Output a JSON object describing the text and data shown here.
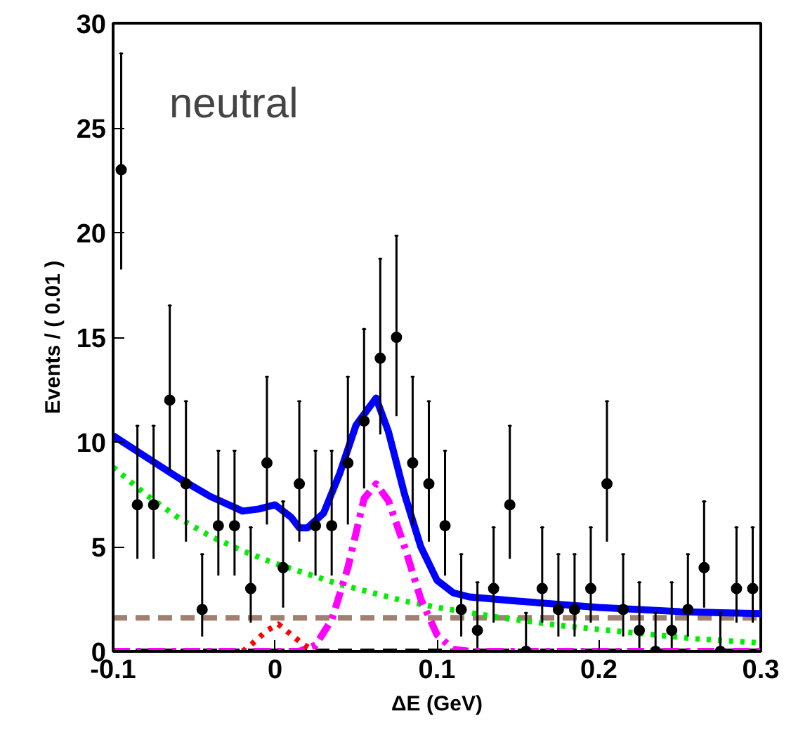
{
  "chart_data": {
    "type": "line",
    "xlabel": "ΔE (GeV)",
    "ylabel": "Events / ( 0.01 )",
    "annotations": [
      "neutral"
    ],
    "xlim": [
      -0.1,
      0.3
    ],
    "xticks": [
      -0.1,
      0,
      0.1,
      0.2,
      0.3
    ],
    "ylim": [
      0,
      30
    ],
    "yticks": [
      0,
      5,
      10,
      15,
      20,
      25,
      30
    ],
    "series": [
      {
        "color": "#a08070",
        "line_style": "dashed",
        "x": [
          -0.1,
          0.3
        ],
        "values": [
          1.6,
          1.6
        ]
      },
      {
        "color": "#000000",
        "line_style": "dashed",
        "x": [
          -0.1,
          0.3
        ],
        "values": [
          0,
          0
        ]
      },
      {
        "color": "#00ee00",
        "line_style": "dotted",
        "x": [
          -0.1,
          -0.08,
          -0.06,
          -0.04,
          -0.02,
          0,
          0.02,
          0.04,
          0.06,
          0.08,
          0.1,
          0.14,
          0.18,
          0.22,
          0.26,
          0.3
        ],
        "values": [
          8.8,
          7.5,
          6.4,
          5.5,
          4.8,
          4.2,
          3.7,
          3.2,
          2.8,
          2.4,
          2.1,
          1.6,
          1.2,
          0.9,
          0.6,
          0.4
        ]
      },
      {
        "color": "#ff00ff",
        "line_style": "dashdot",
        "x": [
          -0.1,
          0.015,
          0.025,
          0.035,
          0.045,
          0.055,
          0.0624,
          0.07,
          0.08,
          0.09,
          0.1,
          0.11,
          0.12,
          0.3
        ],
        "values": [
          0,
          0,
          0.3,
          1.5,
          4,
          7.3,
          8,
          7.2,
          5,
          2.5,
          0.8,
          0.1,
          0,
          0
        ]
      },
      {
        "color": "#ff0000",
        "line_style": "dotted",
        "x": [
          -0.02,
          -0.015,
          -0.005,
          0.002,
          0.01,
          0.018,
          0.025
        ],
        "values": [
          0,
          0.3,
          1.0,
          1.3,
          0.8,
          0.3,
          0
        ]
      },
      {
        "color": "#0000ff",
        "line_style": "solid",
        "x": [
          -0.1,
          -0.08,
          -0.06,
          -0.04,
          -0.02,
          -0.01,
          0,
          0.01,
          0.015,
          0.02,
          0.03,
          0.04,
          0.05,
          0.0624,
          0.07,
          0.08,
          0.09,
          0.1,
          0.11,
          0.12,
          0.15,
          0.2,
          0.25,
          0.3
        ],
        "values": [
          10.3,
          9.3,
          8.3,
          7.4,
          6.7,
          6.8,
          7.0,
          6.4,
          5.9,
          5.9,
          6.6,
          8.5,
          10.8,
          12.1,
          10.5,
          7.5,
          5,
          3.4,
          2.8,
          2.6,
          2.4,
          2.1,
          1.9,
          1.8
        ]
      },
      {
        "type": "scatter",
        "color": "#000000",
        "marker": "circle",
        "x": [
          -0.095,
          -0.085,
          -0.075,
          -0.065,
          -0.055,
          -0.045,
          -0.035,
          -0.025,
          -0.015,
          -0.005,
          0.005,
          0.015,
          0.025,
          0.035,
          0.045,
          0.055,
          0.065,
          0.075,
          0.085,
          0.095,
          0.105,
          0.115,
          0.125,
          0.135,
          0.145,
          0.155,
          0.165,
          0.175,
          0.185,
          0.195,
          0.205,
          0.215,
          0.225,
          0.235,
          0.245,
          0.255,
          0.265,
          0.275,
          0.285,
          0.295
        ],
        "values": [
          23,
          7,
          7,
          12,
          8,
          2,
          6,
          6,
          3,
          9,
          4,
          8,
          6,
          6,
          9,
          11,
          14,
          15,
          9,
          8,
          6,
          2,
          1,
          3,
          7,
          0,
          3,
          2,
          2,
          3,
          8,
          2,
          1,
          0,
          1,
          2,
          4,
          0,
          3,
          3
        ],
        "errors": [
          [
            18.24,
            28.56
          ],
          [
            4.42,
            10.77
          ],
          [
            4.42,
            10.77
          ],
          [
            8.62,
            16.52
          ],
          [
            5.24,
            11.95
          ],
          [
            0.71,
            4.64
          ],
          [
            3.62,
            9.58
          ],
          [
            3.62,
            9.58
          ],
          [
            1.37,
            5.92
          ],
          [
            6.06,
            13.11
          ],
          [
            2.09,
            7.16
          ],
          [
            5.24,
            11.95
          ],
          [
            3.62,
            9.58
          ],
          [
            3.62,
            9.58
          ],
          [
            6.06,
            13.11
          ],
          [
            7.78,
            15.39
          ],
          [
            10.36,
            18.75
          ],
          [
            11.23,
            19.85
          ],
          [
            6.06,
            13.11
          ],
          [
            5.24,
            11.95
          ],
          [
            3.62,
            9.58
          ],
          [
            0.71,
            4.64
          ],
          [
            0.17,
            3.3
          ],
          [
            1.37,
            5.92
          ],
          [
            4.42,
            10.77
          ],
          [
            0,
            1.84
          ],
          [
            1.37,
            5.92
          ],
          [
            0.71,
            4.64
          ],
          [
            0.71,
            4.64
          ],
          [
            1.37,
            5.92
          ],
          [
            5.24,
            11.95
          ],
          [
            0.71,
            4.64
          ],
          [
            0.17,
            3.3
          ],
          [
            0,
            1.84
          ],
          [
            0.17,
            3.3
          ],
          [
            0.71,
            4.64
          ],
          [
            2.09,
            7.16
          ],
          [
            0,
            1.84
          ],
          [
            1.37,
            5.92
          ],
          [
            1.37,
            5.92
          ]
        ]
      }
    ]
  }
}
